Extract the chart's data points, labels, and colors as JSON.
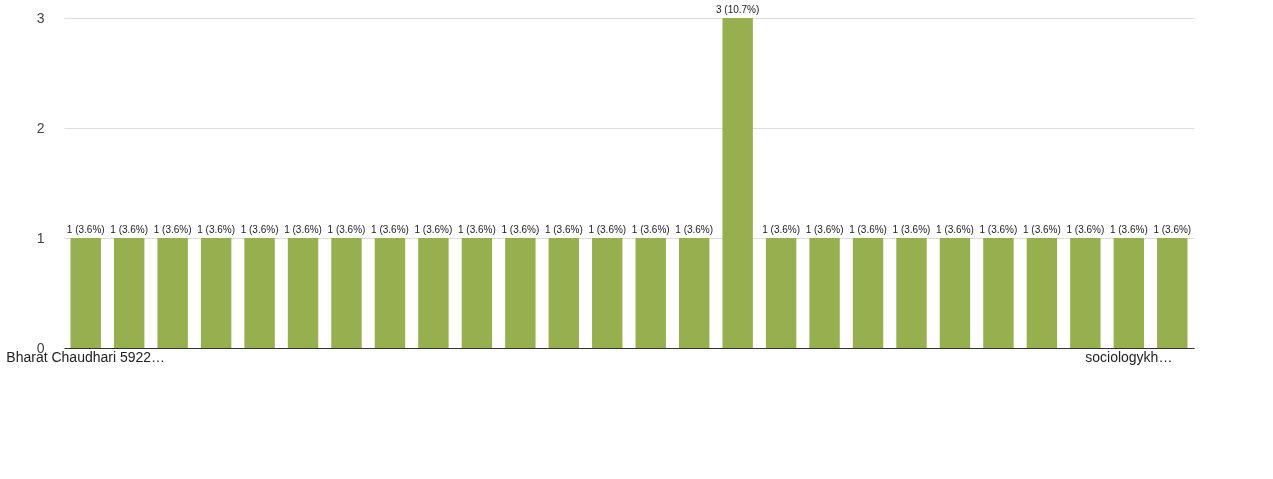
{
  "chart_data": {
    "type": "bar",
    "categories": [
      "Bharat Chaudhari 5922…",
      null,
      null,
      null,
      null,
      null,
      null,
      null,
      null,
      null,
      null,
      null,
      null,
      null,
      null,
      null,
      null,
      null,
      null,
      null,
      null,
      null,
      null,
      null,
      "sociologykh…",
      null
    ],
    "values": [
      1,
      1,
      1,
      1,
      1,
      1,
      1,
      1,
      1,
      1,
      1,
      1,
      1,
      1,
      1,
      3,
      1,
      1,
      1,
      1,
      1,
      1,
      1,
      1,
      1,
      1
    ],
    "value_labels": [
      "1 (3.6%)",
      "1 (3.6%)",
      "1 (3.6%)",
      "1 (3.6%)",
      "1 (3.6%)",
      "1 (3.6%)",
      "1 (3.6%)",
      "1 (3.6%)",
      "1 (3.6%)",
      "1 (3.6%)",
      "1 (3.6%)",
      "1 (3.6%)",
      "1 (3.6%)",
      "1 (3.6%)",
      "1 (3.6%)",
      "3 (10.7%)",
      "1 (3.6%)",
      "1 (3.6%)",
      "1 (3.6%)",
      "1 (3.6%)",
      "1 (3.6%)",
      "1 (3.6%)",
      "1 (3.6%)",
      "1 (3.6%)",
      "1 (3.6%)",
      "1 (3.6%)"
    ],
    "color": "#97b04f",
    "ylim": [
      0,
      3
    ],
    "yticks": [
      0,
      1,
      2,
      3
    ],
    "grid": "y"
  }
}
